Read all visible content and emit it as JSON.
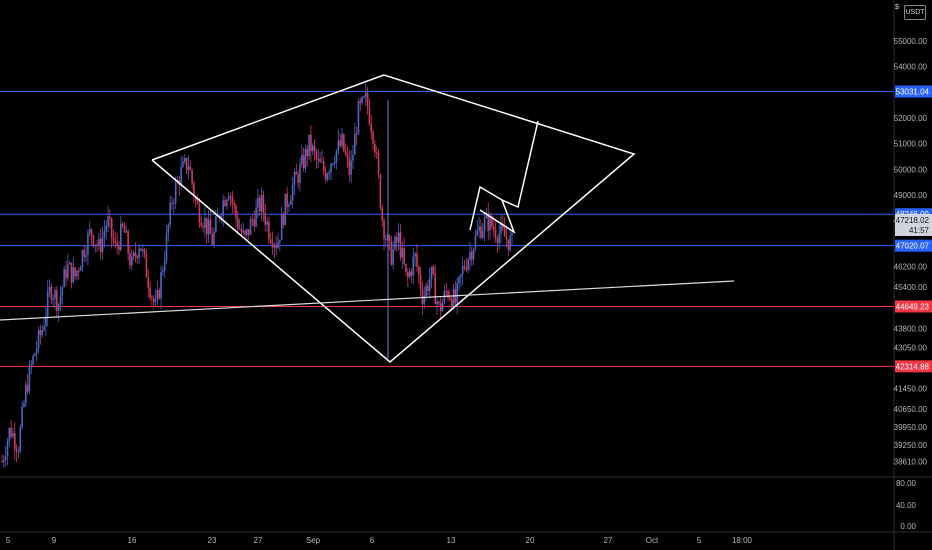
{
  "chart_data": {
    "type": "candlestick",
    "symbol_currency": "USDT",
    "scale_mode": "$",
    "price_axis_ticks": [
      "55000.00",
      "54000.00",
      "52000.00",
      "51000.00",
      "50000.00",
      "49000.00",
      "48000.00",
      "46200.00",
      "45400.00",
      "43800.00",
      "43050.00",
      "41450.00",
      "40650.00",
      "39950.00",
      "39250.00",
      "38610.00"
    ],
    "oscillator_ticks": [
      "80.00",
      "40.00",
      "0.00"
    ],
    "time_axis_labels": [
      "5",
      "9",
      "16",
      "23",
      "27",
      "Sep",
      "6",
      "13",
      "20",
      "27",
      "Oct",
      "5",
      "18:00"
    ],
    "ylim": [
      38000,
      56600
    ],
    "horizontal_levels": [
      {
        "price": 53031.04,
        "label": "53031.04",
        "color": "#2962ff"
      },
      {
        "price": 48246.09,
        "label": "48246.09",
        "color": "#2962ff"
      },
      {
        "price": 47020.07,
        "label": "47020.07",
        "color": "#2962ff"
      },
      {
        "price": 44649.23,
        "label": "44649.23",
        "color": "#f23645"
      },
      {
        "price": 42314.88,
        "label": "42314.88",
        "color": "#f23645"
      }
    ],
    "last_price": {
      "value": "47218.02",
      "countdown": "41:57"
    },
    "price_path": [
      38610,
      39900,
      39200,
      41500,
      42800,
      43800,
      45400,
      44800,
      46200,
      45800,
      46800,
      47600,
      46900,
      48000,
      46900,
      47700,
      46200,
      47200,
      45800,
      44500,
      46500,
      48800,
      49800,
      50300,
      48600,
      48000,
      47200,
      48500,
      49300,
      48000,
      47200,
      48100,
      48700,
      47600,
      47100,
      48600,
      49400,
      50100,
      51000,
      50200,
      49900,
      50600,
      51000,
      49800,
      52200,
      52700,
      51200,
      48000,
      46600,
      47300,
      45600,
      46600,
      45000,
      45900,
      44500,
      45300,
      44800,
      46200,
      46900,
      47700,
      48000,
      47600,
      47400,
      47100
    ],
    "drawings": "diamond pattern with flag extension and trendline"
  },
  "ui": {
    "currency_badge": "USDT",
    "scale_toggle": "$"
  },
  "colors": {
    "background": "#000000",
    "candle_up": "#4a67c4",
    "candle_down": "#d23a5a",
    "drawing": "#ffffff",
    "level_blue": "#2962ff",
    "level_red": "#f23645"
  }
}
